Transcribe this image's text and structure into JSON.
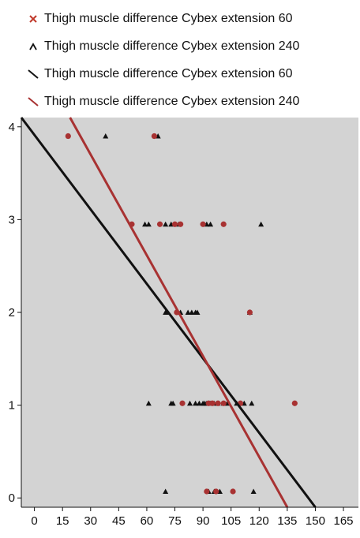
{
  "chart_data": {
    "type": "scatter",
    "legend": [
      {
        "label": "Thigh muscle difference Cybex extension 60",
        "kind": "points",
        "marker": "x",
        "color": "#c0392b"
      },
      {
        "label": "Thigh muscle difference Cybex extension 240",
        "kind": "points",
        "marker": "triangle",
        "color": "#111111"
      },
      {
        "label": "Thigh muscle difference Cybex extension 60",
        "kind": "line",
        "color": "#111111"
      },
      {
        "label": "Thigh muscle difference Cybex extension 240",
        "kind": "line",
        "color": "#a83232"
      }
    ],
    "xlim": [
      -7,
      173
    ],
    "ylim": [
      -0.1,
      4.1
    ],
    "xticks": [
      0,
      15,
      30,
      45,
      60,
      75,
      90,
      105,
      120,
      135,
      150,
      165
    ],
    "yticks": [
      0,
      1,
      2,
      3,
      4
    ],
    "background": "#d3d3d3",
    "grid": false,
    "series": [
      {
        "marker": "triangle",
        "color": "#111111",
        "points": [
          [
            38,
            3.9
          ],
          [
            66,
            3.9
          ],
          [
            59,
            2.95
          ],
          [
            61,
            2.95
          ],
          [
            70,
            2.95
          ],
          [
            73,
            2.95
          ],
          [
            77,
            2.95
          ],
          [
            92,
            2.95
          ],
          [
            94,
            2.95
          ],
          [
            121,
            2.95
          ],
          [
            70,
            2.0
          ],
          [
            71,
            2.0
          ],
          [
            78,
            2.0
          ],
          [
            82,
            2.0
          ],
          [
            84,
            2.0
          ],
          [
            86,
            2.0
          ],
          [
            87,
            2.0
          ],
          [
            115,
            2.0
          ],
          [
            61,
            1.02
          ],
          [
            73,
            1.02
          ],
          [
            74,
            1.02
          ],
          [
            83,
            1.02
          ],
          [
            86,
            1.02
          ],
          [
            88,
            1.02
          ],
          [
            90,
            1.02
          ],
          [
            91,
            1.02
          ],
          [
            92,
            1.02
          ],
          [
            94,
            1.02
          ],
          [
            96,
            1.02
          ],
          [
            98,
            1.02
          ],
          [
            101,
            1.02
          ],
          [
            103,
            1.02
          ],
          [
            108,
            1.02
          ],
          [
            112,
            1.02
          ],
          [
            116,
            1.02
          ],
          [
            70,
            0.07
          ],
          [
            93,
            0.07
          ],
          [
            96,
            0.07
          ],
          [
            99,
            0.07
          ],
          [
            117,
            0.07
          ]
        ]
      },
      {
        "marker": "circle",
        "color": "#a83232",
        "points": [
          [
            18,
            3.9
          ],
          [
            64,
            3.9
          ],
          [
            52,
            2.95
          ],
          [
            67,
            2.95
          ],
          [
            75,
            2.95
          ],
          [
            78,
            2.95
          ],
          [
            90,
            2.95
          ],
          [
            101,
            2.95
          ],
          [
            76,
            2.0
          ],
          [
            115,
            2.0
          ],
          [
            79,
            1.02
          ],
          [
            93,
            1.02
          ],
          [
            95,
            1.02
          ],
          [
            98,
            1.02
          ],
          [
            101,
            1.02
          ],
          [
            110,
            1.02
          ],
          [
            139,
            1.02
          ],
          [
            92,
            0.07
          ],
          [
            97,
            0.07
          ],
          [
            106,
            0.07
          ]
        ]
      }
    ],
    "lines": [
      {
        "color": "#111111",
        "x1": -7,
        "y1": 4.1,
        "x2": 150,
        "y2": -0.1
      },
      {
        "color": "#a83232",
        "x1": 19,
        "y1": 4.1,
        "x2": 135,
        "y2": -0.1
      }
    ]
  }
}
